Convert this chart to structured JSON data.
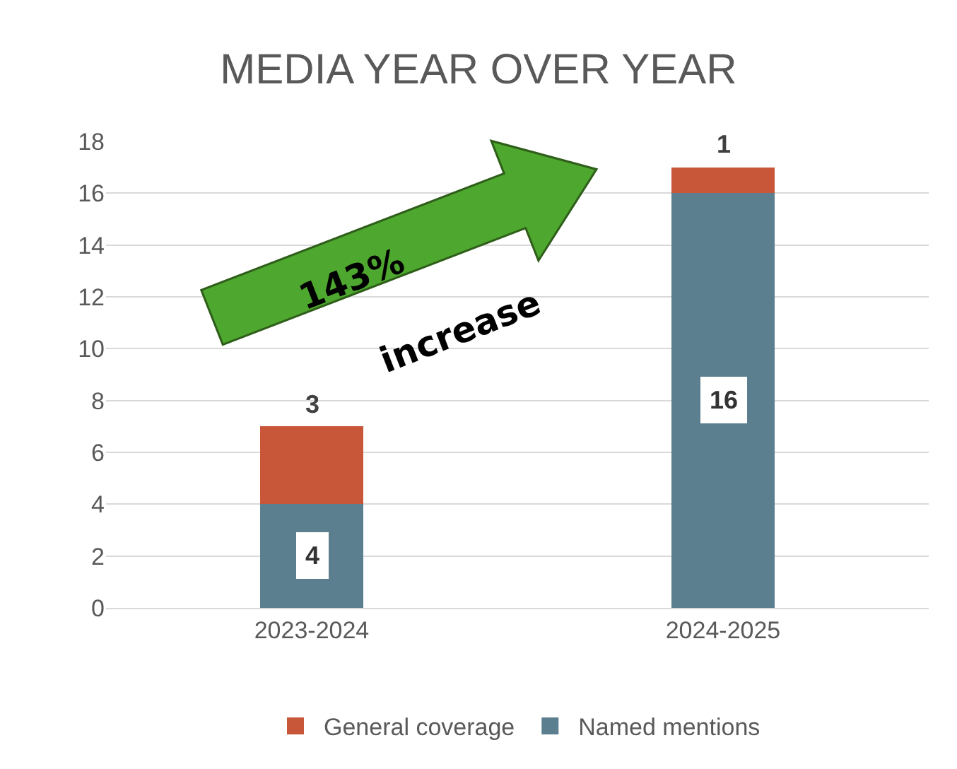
{
  "chart_data": {
    "type": "bar",
    "title": "MEDIA YEAR OVER YEAR",
    "stacked": true,
    "categories": [
      "2023-2024",
      "2024-2025"
    ],
    "series": [
      {
        "name": "Named mentions",
        "color": "#5b7f8f",
        "values": [
          4,
          16
        ]
      },
      {
        "name": "General coverage",
        "color": "#c8573a",
        "values": [
          3,
          1
        ]
      }
    ],
    "ylim": [
      0,
      18
    ],
    "yticks": [
      0,
      2,
      4,
      6,
      8,
      10,
      12,
      14,
      16,
      18
    ],
    "grid": "y",
    "legend": "bottom",
    "data_labels": true,
    "annotations": [
      "143%",
      "increase"
    ]
  }
}
